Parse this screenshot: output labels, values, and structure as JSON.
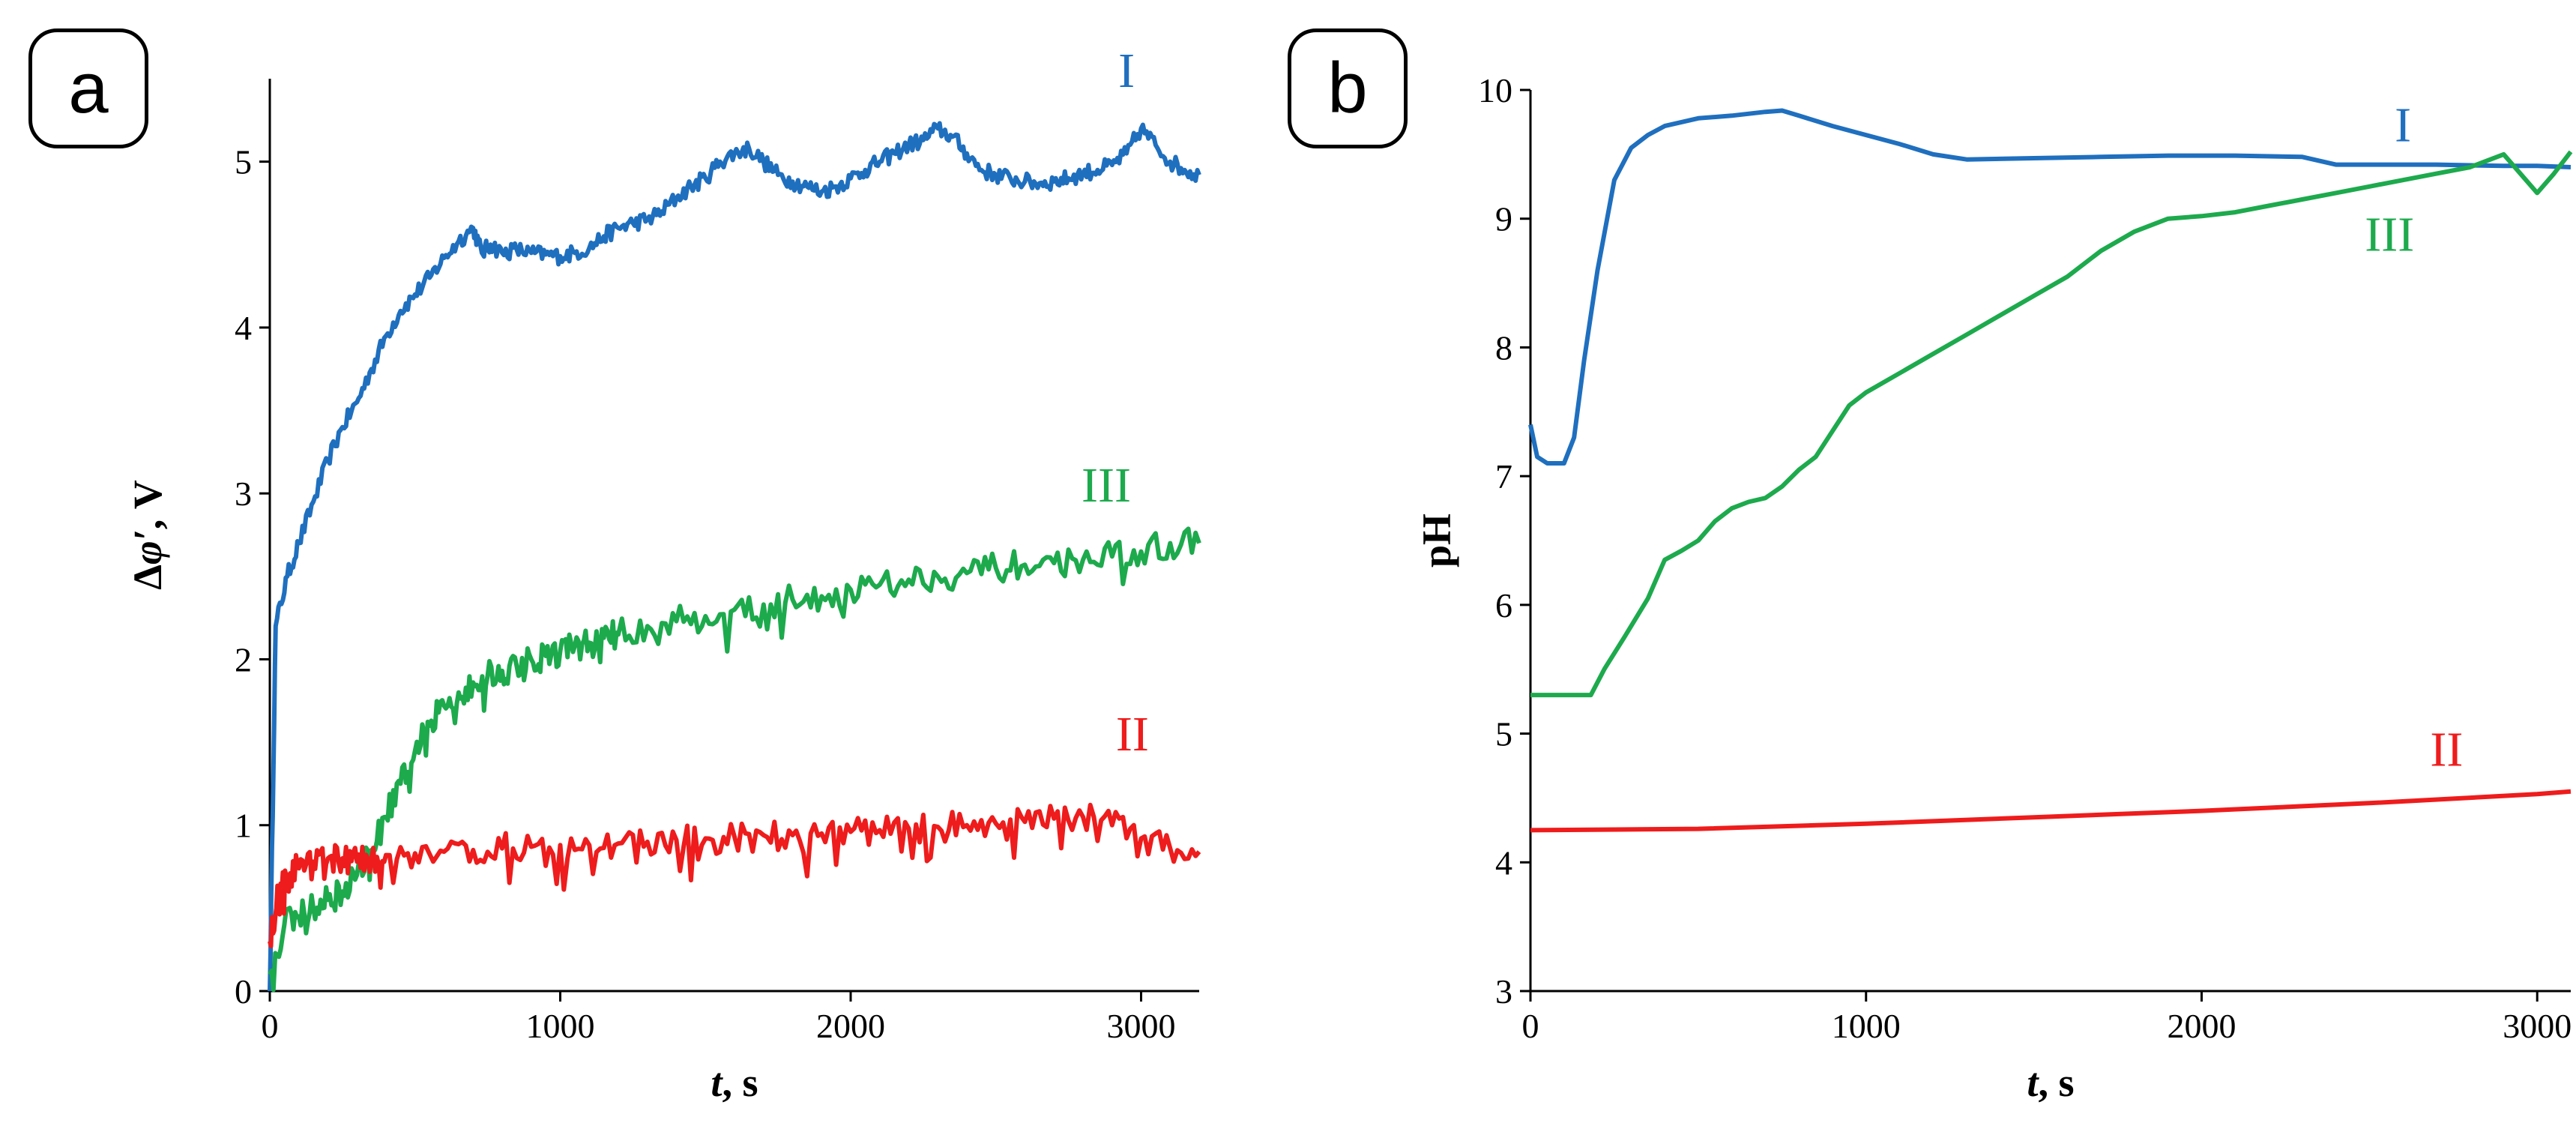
{
  "chart_data": [
    {
      "panel_label": "a",
      "type": "line",
      "title": "",
      "xlabel_italic": "t",
      "xlabel_rest": ", s",
      "ylabel_prefix": "Δ",
      "ylabel_italic": "φ′",
      "ylabel_rest": ", V",
      "xlim": [
        0,
        3200
      ],
      "ylim": [
        0,
        5.5
      ],
      "xticks": [
        0,
        1000,
        2000,
        3000
      ],
      "yticks": [
        0,
        1,
        2,
        3,
        4,
        5
      ],
      "grid": false,
      "series": [
        {
          "name": "I",
          "color": "#1f6fbf",
          "x": [
            0,
            20,
            60,
            100,
            150,
            200,
            250,
            300,
            350,
            400,
            450,
            500,
            550,
            600,
            650,
            700,
            730,
            760,
            800,
            850,
            900,
            950,
            1000,
            1050,
            1100,
            1150,
            1200,
            1250,
            1300,
            1350,
            1400,
            1450,
            1500,
            1550,
            1600,
            1650,
            1700,
            1750,
            1800,
            1850,
            1900,
            1950,
            2000,
            2050,
            2100,
            2150,
            2200,
            2250,
            2300,
            2350,
            2400,
            2450,
            2500,
            2550,
            2600,
            2650,
            2700,
            2750,
            2800,
            2850,
            2900,
            2950,
            3000,
            3050,
            3100,
            3150,
            3200
          ],
          "y": [
            0.0,
            2.2,
            2.5,
            2.7,
            2.95,
            3.2,
            3.4,
            3.55,
            3.75,
            3.95,
            4.1,
            4.2,
            4.3,
            4.42,
            4.52,
            4.6,
            4.45,
            4.5,
            4.45,
            4.47,
            4.45,
            4.44,
            4.43,
            4.45,
            4.48,
            4.55,
            4.6,
            4.63,
            4.65,
            4.7,
            4.78,
            4.85,
            4.9,
            5.0,
            5.05,
            5.08,
            5.0,
            4.92,
            4.88,
            4.85,
            4.82,
            4.85,
            4.9,
            4.95,
            5.0,
            5.05,
            5.1,
            5.13,
            5.2,
            5.15,
            5.05,
            4.95,
            4.92,
            4.9,
            4.88,
            4.87,
            4.88,
            4.9,
            4.93,
            4.95,
            4.98,
            5.05,
            5.2,
            5.1,
            5.0,
            4.95,
            4.92
          ]
        },
        {
          "name": "III",
          "color": "#1daa4d",
          "x": [
            0,
            50,
            100,
            150,
            200,
            250,
            300,
            350,
            400,
            450,
            500,
            550,
            600,
            650,
            700,
            750,
            800,
            850,
            900,
            950,
            1000,
            1050,
            1100,
            1150,
            1200,
            1300,
            1400,
            1500,
            1600,
            1700,
            1800,
            1900,
            2000,
            2100,
            2200,
            2300,
            2400,
            2500,
            2600,
            2700,
            2800,
            2900,
            3000,
            3100,
            3200
          ],
          "y": [
            0.1,
            0.4,
            0.45,
            0.5,
            0.55,
            0.6,
            0.7,
            0.85,
            1.05,
            1.25,
            1.45,
            1.6,
            1.72,
            1.8,
            1.86,
            1.9,
            1.93,
            1.96,
            2.0,
            2.02,
            2.05,
            2.08,
            2.1,
            2.13,
            2.15,
            2.2,
            2.23,
            2.26,
            2.3,
            2.33,
            2.36,
            2.38,
            2.42,
            2.45,
            2.48,
            2.5,
            2.52,
            2.55,
            2.57,
            2.58,
            2.6,
            2.62,
            2.65,
            2.7,
            2.7
          ]
        },
        {
          "name": "II",
          "color": "#ee1c1c",
          "x": [
            0,
            30,
            60,
            100,
            150,
            200,
            250,
            300,
            350,
            400,
            500,
            600,
            700,
            800,
            900,
            1000,
            1100,
            1200,
            1300,
            1400,
            1500,
            1600,
            1700,
            1800,
            1900,
            2000,
            2100,
            2200,
            2300,
            2400,
            2500,
            2600,
            2700,
            2800,
            2900,
            3000,
            3100,
            3200
          ],
          "y": [
            0.3,
            0.6,
            0.7,
            0.74,
            0.78,
            0.8,
            0.8,
            0.78,
            0.8,
            0.82,
            0.83,
            0.84,
            0.85,
            0.86,
            0.87,
            0.88,
            0.88,
            0.89,
            0.9,
            0.91,
            0.92,
            0.93,
            0.94,
            0.94,
            0.95,
            0.96,
            0.97,
            0.98,
            0.99,
            1.0,
            1.01,
            1.02,
            1.04,
            1.05,
            1.0,
            0.92,
            0.86,
            0.84
          ]
        }
      ],
      "annotations": [
        {
          "text": "I",
          "color": "#1f6fbf",
          "x": 2950,
          "y": 5.45
        },
        {
          "text": "III",
          "color": "#1daa4d",
          "x": 2880,
          "y": 2.95
        },
        {
          "text": "II",
          "color": "#ee1c1c",
          "x": 2970,
          "y": 1.45
        }
      ]
    },
    {
      "panel_label": "b",
      "type": "line",
      "title": "",
      "xlabel_italic": "t",
      "xlabel_rest": ", s",
      "ylabel": "pH",
      "xlim": [
        0,
        3100
      ],
      "ylim": [
        3,
        10
      ],
      "xticks": [
        0,
        1000,
        2000,
        3000
      ],
      "yticks": [
        3,
        4,
        5,
        6,
        7,
        8,
        9,
        10
      ],
      "grid": false,
      "series": [
        {
          "name": "I",
          "color": "#1f6fbf",
          "x": [
            0,
            20,
            50,
            100,
            130,
            160,
            200,
            250,
            300,
            350,
            400,
            500,
            600,
            700,
            750,
            800,
            900,
            1000,
            1100,
            1200,
            1300,
            1500,
            1700,
            1900,
            2100,
            2300,
            2400,
            2500,
            2700,
            2900,
            3000,
            3100
          ],
          "y": [
            7.4,
            7.15,
            7.1,
            7.1,
            7.3,
            7.9,
            8.6,
            9.3,
            9.55,
            9.65,
            9.72,
            9.78,
            9.8,
            9.83,
            9.84,
            9.8,
            9.72,
            9.65,
            9.58,
            9.5,
            9.46,
            9.47,
            9.48,
            9.49,
            9.49,
            9.48,
            9.42,
            9.42,
            9.42,
            9.41,
            9.41,
            9.4
          ]
        },
        {
          "name": "III",
          "color": "#1daa4d",
          "x": [
            0,
            100,
            180,
            220,
            280,
            350,
            400,
            450,
            500,
            550,
            600,
            650,
            700,
            750,
            800,
            850,
            900,
            950,
            1000,
            1100,
            1200,
            1300,
            1400,
            1500,
            1600,
            1700,
            1800,
            1900,
            2000,
            2100,
            2200,
            2300,
            2400,
            2500,
            2600,
            2700,
            2800,
            2850,
            2900,
            2950,
            3000,
            3050,
            3100
          ],
          "y": [
            5.3,
            5.3,
            5.3,
            5.5,
            5.75,
            6.05,
            6.35,
            6.42,
            6.5,
            6.65,
            6.75,
            6.8,
            6.83,
            6.92,
            7.05,
            7.15,
            7.35,
            7.55,
            7.65,
            7.8,
            7.95,
            8.1,
            8.25,
            8.4,
            8.55,
            8.75,
            8.9,
            9.0,
            9.02,
            9.05,
            9.1,
            9.15,
            9.2,
            9.25,
            9.3,
            9.35,
            9.4,
            9.45,
            9.5,
            9.35,
            9.2,
            9.35,
            9.52
          ]
        },
        {
          "name": "II",
          "color": "#ee1c1c",
          "x": [
            0,
            500,
            1000,
            1500,
            2000,
            2500,
            3000,
            3100
          ],
          "y": [
            4.25,
            4.26,
            4.3,
            4.35,
            4.4,
            4.46,
            4.53,
            4.55
          ]
        }
      ],
      "annotations": [
        {
          "text": "I",
          "color": "#1f6fbf",
          "x": 2600,
          "y": 9.6
        },
        {
          "text": "III",
          "color": "#1daa4d",
          "x": 2560,
          "y": 8.75
        },
        {
          "text": "II",
          "color": "#ee1c1c",
          "x": 2730,
          "y": 4.75
        }
      ]
    }
  ]
}
